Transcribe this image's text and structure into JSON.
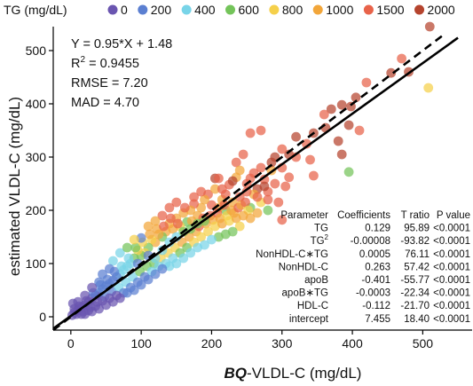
{
  "chart_data": {
    "type": "scatter",
    "xlabel_prefix": "BQ",
    "xlabel_rest": "-VLDL-C (mg/dL)",
    "ylabel": "estimated VLDL-C (mg/dL)",
    "xlim": [
      -25,
      555
    ],
    "ylim": [
      -25,
      545
    ],
    "x_ticks": [
      0,
      100,
      200,
      300,
      400,
      500
    ],
    "y_ticks": [
      0,
      100,
      200,
      300,
      400,
      500
    ],
    "legend": {
      "title": "TG (mg/dL)",
      "placement": "top",
      "entries": [
        {
          "label": "0",
          "color": "#6a55b0"
        },
        {
          "label": "200",
          "color": "#5b7fd1"
        },
        {
          "label": "400",
          "color": "#78d4e8"
        },
        {
          "label": "600",
          "color": "#74c45a"
        },
        {
          "label": "800",
          "color": "#f5d04a"
        },
        {
          "label": "1000",
          "color": "#f2a63a"
        },
        {
          "label": "1500",
          "color": "#e8634a"
        },
        {
          "label": "2000",
          "color": "#b5442e"
        }
      ]
    },
    "annotation": {
      "equation": "Y = 0.95*X + 1.48",
      "r2_label": "R",
      "r2_sup": "2",
      "r2_value": " = 0.9455",
      "rmse": "RMSE = 7.20",
      "mad": "MAD = 4.70"
    },
    "lines": {
      "identity": {
        "slope": 1.0,
        "intercept": 0,
        "style": "dashed"
      },
      "fit": {
        "slope": 0.95,
        "intercept": 1.48,
        "style": "solid"
      }
    },
    "table": {
      "headers": [
        "Parameter",
        "Coefficients",
        "T ratio",
        "P value"
      ],
      "rows": [
        {
          "param": "TG",
          "param_sup": "",
          "coef": "0.129",
          "t": "95.89",
          "p": "<0.0001"
        },
        {
          "param": "TG",
          "param_sup": "2",
          "coef": "-0.00008",
          "t": "-93.82",
          "p": "<0.0001"
        },
        {
          "param": "NonHDL-C∗TG",
          "param_sup": "",
          "coef": "0.0005",
          "t": "76.11",
          "p": "<0.0001"
        },
        {
          "param": "NonHDL-C",
          "param_sup": "",
          "coef": "0.263",
          "t": "57.42",
          "p": "<0.0001"
        },
        {
          "param": "apoB",
          "param_sup": "",
          "coef": "-0.401",
          "t": "-55.77",
          "p": "<0.0001"
        },
        {
          "param": "apoB∗TG",
          "param_sup": "",
          "coef": "-0.0003",
          "t": "-22.34",
          "p": "<0.0001"
        },
        {
          "param": "HDL-C",
          "param_sup": "",
          "coef": "-0.112",
          "t": "-21.70",
          "p": "<0.0001"
        },
        {
          "param": "intercept",
          "param_sup": "",
          "coef": "7.455",
          "t": "18.40",
          "p": "<0.0001"
        }
      ]
    },
    "points": [
      {
        "x": 510,
        "y": 545,
        "c": 7
      },
      {
        "x": 508,
        "y": 430,
        "c": 4
      },
      {
        "x": 470,
        "y": 485,
        "c": 6
      },
      {
        "x": 480,
        "y": 460,
        "c": 7
      },
      {
        "x": 455,
        "y": 458,
        "c": 7
      },
      {
        "x": 420,
        "y": 440,
        "c": 6
      },
      {
        "x": 405,
        "y": 412,
        "c": 7
      },
      {
        "x": 398,
        "y": 395,
        "c": 7
      },
      {
        "x": 385,
        "y": 398,
        "c": 7
      },
      {
        "x": 370,
        "y": 390,
        "c": 7
      },
      {
        "x": 360,
        "y": 380,
        "c": 6
      },
      {
        "x": 362,
        "y": 355,
        "c": 7
      },
      {
        "x": 395,
        "y": 360,
        "c": 7
      },
      {
        "x": 410,
        "y": 350,
        "c": 6
      },
      {
        "x": 380,
        "y": 330,
        "c": 7
      },
      {
        "x": 385,
        "y": 305,
        "c": 7
      },
      {
        "x": 395,
        "y": 272,
        "c": 3
      },
      {
        "x": 345,
        "y": 345,
        "c": 7
      },
      {
        "x": 335,
        "y": 325,
        "c": 6
      },
      {
        "x": 320,
        "y": 338,
        "c": 7
      },
      {
        "x": 310,
        "y": 305,
        "c": 7
      },
      {
        "x": 300,
        "y": 315,
        "c": 6
      },
      {
        "x": 290,
        "y": 300,
        "c": 7
      },
      {
        "x": 320,
        "y": 300,
        "c": 6
      },
      {
        "x": 340,
        "y": 295,
        "c": 6
      },
      {
        "x": 345,
        "y": 265,
        "c": 6
      },
      {
        "x": 300,
        "y": 280,
        "c": 6
      },
      {
        "x": 285,
        "y": 275,
        "c": 5
      },
      {
        "x": 310,
        "y": 262,
        "c": 6
      },
      {
        "x": 275,
        "y": 258,
        "c": 6
      },
      {
        "x": 290,
        "y": 250,
        "c": 6
      },
      {
        "x": 305,
        "y": 245,
        "c": 6
      },
      {
        "x": 265,
        "y": 240,
        "c": 7
      },
      {
        "x": 280,
        "y": 235,
        "c": 6
      },
      {
        "x": 260,
        "y": 270,
        "c": 6
      },
      {
        "x": 255,
        "y": 345,
        "c": 6
      },
      {
        "x": 270,
        "y": 350,
        "c": 6
      },
      {
        "x": 245,
        "y": 305,
        "c": 6
      },
      {
        "x": 235,
        "y": 290,
        "c": 6
      },
      {
        "x": 240,
        "y": 275,
        "c": 5
      },
      {
        "x": 250,
        "y": 250,
        "c": 6
      },
      {
        "x": 235,
        "y": 262,
        "c": 5
      },
      {
        "x": 225,
        "y": 248,
        "c": 6
      },
      {
        "x": 260,
        "y": 230,
        "c": 5
      },
      {
        "x": 240,
        "y": 225,
        "c": 6
      },
      {
        "x": 270,
        "y": 215,
        "c": 4
      },
      {
        "x": 280,
        "y": 220,
        "c": 6
      },
      {
        "x": 295,
        "y": 215,
        "c": 6
      },
      {
        "x": 300,
        "y": 182,
        "c": 6
      },
      {
        "x": 280,
        "y": 200,
        "c": 3
      },
      {
        "x": 255,
        "y": 205,
        "c": 3
      },
      {
        "x": 230,
        "y": 215,
        "c": 5
      },
      {
        "x": 215,
        "y": 220,
        "c": 5
      },
      {
        "x": 220,
        "y": 200,
        "c": 3
      },
      {
        "x": 210,
        "y": 205,
        "c": 5
      },
      {
        "x": 200,
        "y": 210,
        "c": 6
      },
      {
        "x": 195,
        "y": 230,
        "c": 6
      },
      {
        "x": 205,
        "y": 240,
        "c": 5
      },
      {
        "x": 190,
        "y": 220,
        "c": 5
      },
      {
        "x": 185,
        "y": 205,
        "c": 5
      },
      {
        "x": 175,
        "y": 212,
        "c": 6
      },
      {
        "x": 180,
        "y": 190,
        "c": 5
      },
      {
        "x": 170,
        "y": 200,
        "c": 5
      },
      {
        "x": 160,
        "y": 195,
        "c": 5
      },
      {
        "x": 165,
        "y": 178,
        "c": 3
      },
      {
        "x": 150,
        "y": 185,
        "c": 5
      },
      {
        "x": 155,
        "y": 170,
        "c": 4
      },
      {
        "x": 145,
        "y": 165,
        "c": 5
      },
      {
        "x": 140,
        "y": 175,
        "c": 5
      },
      {
        "x": 135,
        "y": 160,
        "c": 5
      },
      {
        "x": 130,
        "y": 150,
        "c": 3
      },
      {
        "x": 125,
        "y": 155,
        "c": 5
      },
      {
        "x": 120,
        "y": 140,
        "c": 5
      },
      {
        "x": 115,
        "y": 145,
        "c": 4
      },
      {
        "x": 110,
        "y": 130,
        "c": 3
      },
      {
        "x": 105,
        "y": 120,
        "c": 4
      },
      {
        "x": 100,
        "y": 115,
        "c": 3
      },
      {
        "x": 95,
        "y": 125,
        "c": 4
      },
      {
        "x": 90,
        "y": 110,
        "c": 3
      },
      {
        "x": 85,
        "y": 100,
        "c": 2
      },
      {
        "x": 80,
        "y": 95,
        "c": 2
      },
      {
        "x": 75,
        "y": 88,
        "c": 2
      },
      {
        "x": 70,
        "y": 80,
        "c": 2
      },
      {
        "x": 65,
        "y": 75,
        "c": 1
      },
      {
        "x": 60,
        "y": 68,
        "c": 1
      },
      {
        "x": 55,
        "y": 62,
        "c": 1
      },
      {
        "x": 50,
        "y": 58,
        "c": 1
      },
      {
        "x": 45,
        "y": 52,
        "c": 1
      },
      {
        "x": 40,
        "y": 45,
        "c": 1
      },
      {
        "x": 35,
        "y": 40,
        "c": 0
      },
      {
        "x": 30,
        "y": 35,
        "c": 0
      },
      {
        "x": 25,
        "y": 28,
        "c": 0
      },
      {
        "x": 20,
        "y": 22,
        "c": 0
      },
      {
        "x": 15,
        "y": 18,
        "c": 0
      },
      {
        "x": 10,
        "y": 12,
        "c": 0
      },
      {
        "x": 5,
        "y": 8,
        "c": 0
      },
      {
        "x": 2,
        "y": 3,
        "c": 0
      },
      {
        "x": 8,
        "y": 5,
        "c": 0
      },
      {
        "x": 12,
        "y": 20,
        "c": 0
      },
      {
        "x": 18,
        "y": 10,
        "c": 0
      },
      {
        "x": 22,
        "y": 30,
        "c": 0
      },
      {
        "x": 28,
        "y": 18,
        "c": 0
      },
      {
        "x": 32,
        "y": 45,
        "c": 1
      },
      {
        "x": 38,
        "y": 28,
        "c": 0
      },
      {
        "x": 42,
        "y": 60,
        "c": 1
      },
      {
        "x": 48,
        "y": 38,
        "c": 1
      },
      {
        "x": 52,
        "y": 70,
        "c": 1
      },
      {
        "x": 58,
        "y": 48,
        "c": 1
      },
      {
        "x": 62,
        "y": 85,
        "c": 1
      },
      {
        "x": 68,
        "y": 55,
        "c": 2
      },
      {
        "x": 72,
        "y": 95,
        "c": 2
      },
      {
        "x": 78,
        "y": 65,
        "c": 2
      },
      {
        "x": 82,
        "y": 110,
        "c": 2
      },
      {
        "x": 88,
        "y": 75,
        "c": 2
      },
      {
        "x": 92,
        "y": 130,
        "c": 3
      },
      {
        "x": 98,
        "y": 85,
        "c": 3
      },
      {
        "x": 102,
        "y": 140,
        "c": 4
      },
      {
        "x": 108,
        "y": 95,
        "c": 3
      },
      {
        "x": 112,
        "y": 155,
        "c": 5
      },
      {
        "x": 118,
        "y": 100,
        "c": 3
      },
      {
        "x": 122,
        "y": 165,
        "c": 5
      },
      {
        "x": 128,
        "y": 110,
        "c": 4
      },
      {
        "x": 132,
        "y": 170,
        "c": 6
      },
      {
        "x": 138,
        "y": 120,
        "c": 4
      },
      {
        "x": 142,
        "y": 185,
        "c": 6
      },
      {
        "x": 148,
        "y": 130,
        "c": 4
      },
      {
        "x": 152,
        "y": 175,
        "c": 6
      },
      {
        "x": 158,
        "y": 140,
        "c": 5
      },
      {
        "x": 162,
        "y": 205,
        "c": 6
      },
      {
        "x": 168,
        "y": 150,
        "c": 5
      },
      {
        "x": 172,
        "y": 180,
        "c": 5
      },
      {
        "x": 178,
        "y": 160,
        "c": 5
      },
      {
        "x": 182,
        "y": 170,
        "c": 6
      },
      {
        "x": 188,
        "y": 185,
        "c": 6
      },
      {
        "x": 192,
        "y": 175,
        "c": 5
      },
      {
        "x": 198,
        "y": 190,
        "c": 6
      },
      {
        "x": 202,
        "y": 182,
        "c": 5
      },
      {
        "x": 208,
        "y": 195,
        "c": 6
      },
      {
        "x": 212,
        "y": 185,
        "c": 5
      },
      {
        "x": 218,
        "y": 210,
        "c": 6
      },
      {
        "x": 222,
        "y": 190,
        "c": 4
      },
      {
        "x": 228,
        "y": 200,
        "c": 5
      },
      {
        "x": 232,
        "y": 195,
        "c": 5
      },
      {
        "x": 238,
        "y": 205,
        "c": 6
      },
      {
        "x": 242,
        "y": 210,
        "c": 5
      },
      {
        "x": 248,
        "y": 215,
        "c": 6
      },
      {
        "x": 252,
        "y": 200,
        "c": 4
      },
      {
        "x": 215,
        "y": 240,
        "c": 6
      },
      {
        "x": 205,
        "y": 260,
        "c": 7
      },
      {
        "x": 210,
        "y": 260,
        "c": 6
      },
      {
        "x": 100,
        "y": 148,
        "c": 1
      },
      {
        "x": 110,
        "y": 115,
        "c": 1
      },
      {
        "x": 95,
        "y": 100,
        "c": 1
      },
      {
        "x": 120,
        "y": 110,
        "c": 2
      },
      {
        "x": 130,
        "y": 125,
        "c": 2
      },
      {
        "x": 125,
        "y": 95,
        "c": 2
      },
      {
        "x": 140,
        "y": 140,
        "c": 2
      },
      {
        "x": 150,
        "y": 150,
        "c": 2
      },
      {
        "x": 160,
        "y": 160,
        "c": 3
      },
      {
        "x": 170,
        "y": 165,
        "c": 3
      },
      {
        "x": 180,
        "y": 175,
        "c": 3
      },
      {
        "x": 190,
        "y": 180,
        "c": 3
      },
      {
        "x": 155,
        "y": 120,
        "c": 3
      },
      {
        "x": 145,
        "y": 110,
        "c": 2
      },
      {
        "x": 135,
        "y": 100,
        "c": 2
      },
      {
        "x": 115,
        "y": 85,
        "c": 2
      },
      {
        "x": 105,
        "y": 75,
        "c": 1
      },
      {
        "x": 95,
        "y": 65,
        "c": 1
      },
      {
        "x": 85,
        "y": 55,
        "c": 1
      },
      {
        "x": 75,
        "y": 45,
        "c": 1
      },
      {
        "x": 65,
        "y": 40,
        "c": 0
      },
      {
        "x": 55,
        "y": 35,
        "c": 0
      },
      {
        "x": 45,
        "y": 30,
        "c": 0
      },
      {
        "x": 35,
        "y": 20,
        "c": 0
      },
      {
        "x": 25,
        "y": 12,
        "c": 0
      },
      {
        "x": 15,
        "y": 5,
        "c": 0
      },
      {
        "x": 60,
        "y": 105,
        "c": 2
      },
      {
        "x": 70,
        "y": 120,
        "c": 2
      },
      {
        "x": 80,
        "y": 130,
        "c": 3
      },
      {
        "x": 90,
        "y": 145,
        "c": 4
      },
      {
        "x": 55,
        "y": 90,
        "c": 1
      },
      {
        "x": 45,
        "y": 80,
        "c": 1
      },
      {
        "x": 40,
        "y": 65,
        "c": 1
      },
      {
        "x": 30,
        "y": 55,
        "c": 0
      },
      {
        "x": 20,
        "y": 40,
        "c": 0
      },
      {
        "x": 10,
        "y": 28,
        "c": 0
      },
      {
        "x": 165,
        "y": 130,
        "c": 3
      },
      {
        "x": 175,
        "y": 140,
        "c": 4
      },
      {
        "x": 185,
        "y": 150,
        "c": 4
      },
      {
        "x": 195,
        "y": 160,
        "c": 4
      },
      {
        "x": 205,
        "y": 170,
        "c": 4
      },
      {
        "x": 215,
        "y": 175,
        "c": 5
      },
      {
        "x": 225,
        "y": 180,
        "c": 4
      },
      {
        "x": 235,
        "y": 185,
        "c": 5
      },
      {
        "x": 245,
        "y": 190,
        "c": 5
      },
      {
        "x": 255,
        "y": 185,
        "c": 5
      },
      {
        "x": 265,
        "y": 195,
        "c": 5
      },
      {
        "x": 240,
        "y": 170,
        "c": 4
      },
      {
        "x": 230,
        "y": 160,
        "c": 3
      },
      {
        "x": 220,
        "y": 155,
        "c": 3
      },
      {
        "x": 210,
        "y": 150,
        "c": 3
      },
      {
        "x": 200,
        "y": 145,
        "c": 2
      },
      {
        "x": 190,
        "y": 135,
        "c": 2
      },
      {
        "x": 180,
        "y": 130,
        "c": 2
      },
      {
        "x": 170,
        "y": 120,
        "c": 2
      },
      {
        "x": 160,
        "y": 110,
        "c": 2
      },
      {
        "x": 150,
        "y": 100,
        "c": 2
      },
      {
        "x": 140,
        "y": 95,
        "c": 2
      },
      {
        "x": 130,
        "y": 90,
        "c": 1
      },
      {
        "x": 120,
        "y": 80,
        "c": 1
      },
      {
        "x": 110,
        "y": 70,
        "c": 1
      },
      {
        "x": 100,
        "y": 60,
        "c": 1
      },
      {
        "x": 90,
        "y": 50,
        "c": 1
      },
      {
        "x": 80,
        "y": 45,
        "c": 1
      },
      {
        "x": 70,
        "y": 35,
        "c": 0
      },
      {
        "x": 60,
        "y": 28,
        "c": 0
      },
      {
        "x": 50,
        "y": 22,
        "c": 0
      },
      {
        "x": 40,
        "y": 15,
        "c": 0
      },
      {
        "x": 30,
        "y": 10,
        "c": 0
      },
      {
        "x": 20,
        "y": 5,
        "c": 0
      },
      {
        "x": 5,
        "y": 15,
        "c": 0
      },
      {
        "x": 3,
        "y": 25,
        "c": 0
      },
      {
        "x": 140,
        "y": 205,
        "c": 6
      },
      {
        "x": 150,
        "y": 215,
        "c": 6
      },
      {
        "x": 130,
        "y": 190,
        "c": 6
      },
      {
        "x": 120,
        "y": 180,
        "c": 5
      },
      {
        "x": 110,
        "y": 170,
        "c": 5
      },
      {
        "x": 175,
        "y": 225,
        "c": 6
      },
      {
        "x": 185,
        "y": 235,
        "c": 6
      },
      {
        "x": 220,
        "y": 230,
        "c": 6
      },
      {
        "x": 250,
        "y": 235,
        "c": 6
      },
      {
        "x": 265,
        "y": 225,
        "c": 6
      },
      {
        "x": 275,
        "y": 245,
        "c": 7
      },
      {
        "x": 230,
        "y": 255,
        "c": 7
      },
      {
        "x": 270,
        "y": 280,
        "c": 6
      },
      {
        "x": 285,
        "y": 290,
        "c": 7
      },
      {
        "x": 255,
        "y": 260,
        "c": 6
      }
    ]
  }
}
